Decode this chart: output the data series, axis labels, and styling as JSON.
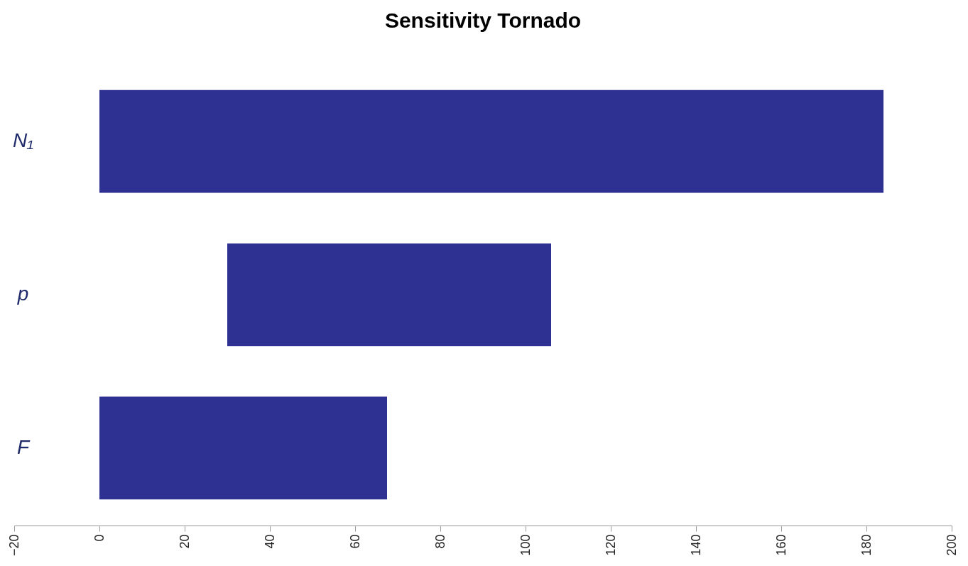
{
  "chart_data": {
    "type": "bar",
    "title": "Sensitivity Tornado",
    "orientation": "horizontal",
    "categories": [
      "N₁",
      "p",
      "F"
    ],
    "base": [
      0,
      30,
      0
    ],
    "values": [
      184,
      76,
      67.5
    ],
    "color": "#2e3192",
    "xlim": [
      -20,
      200
    ],
    "xticks": [
      {
        "value": -20,
        "label": "−20"
      },
      0,
      20,
      40,
      60,
      80,
      100,
      120,
      140,
      160,
      180,
      200
    ],
    "grid": false
  }
}
